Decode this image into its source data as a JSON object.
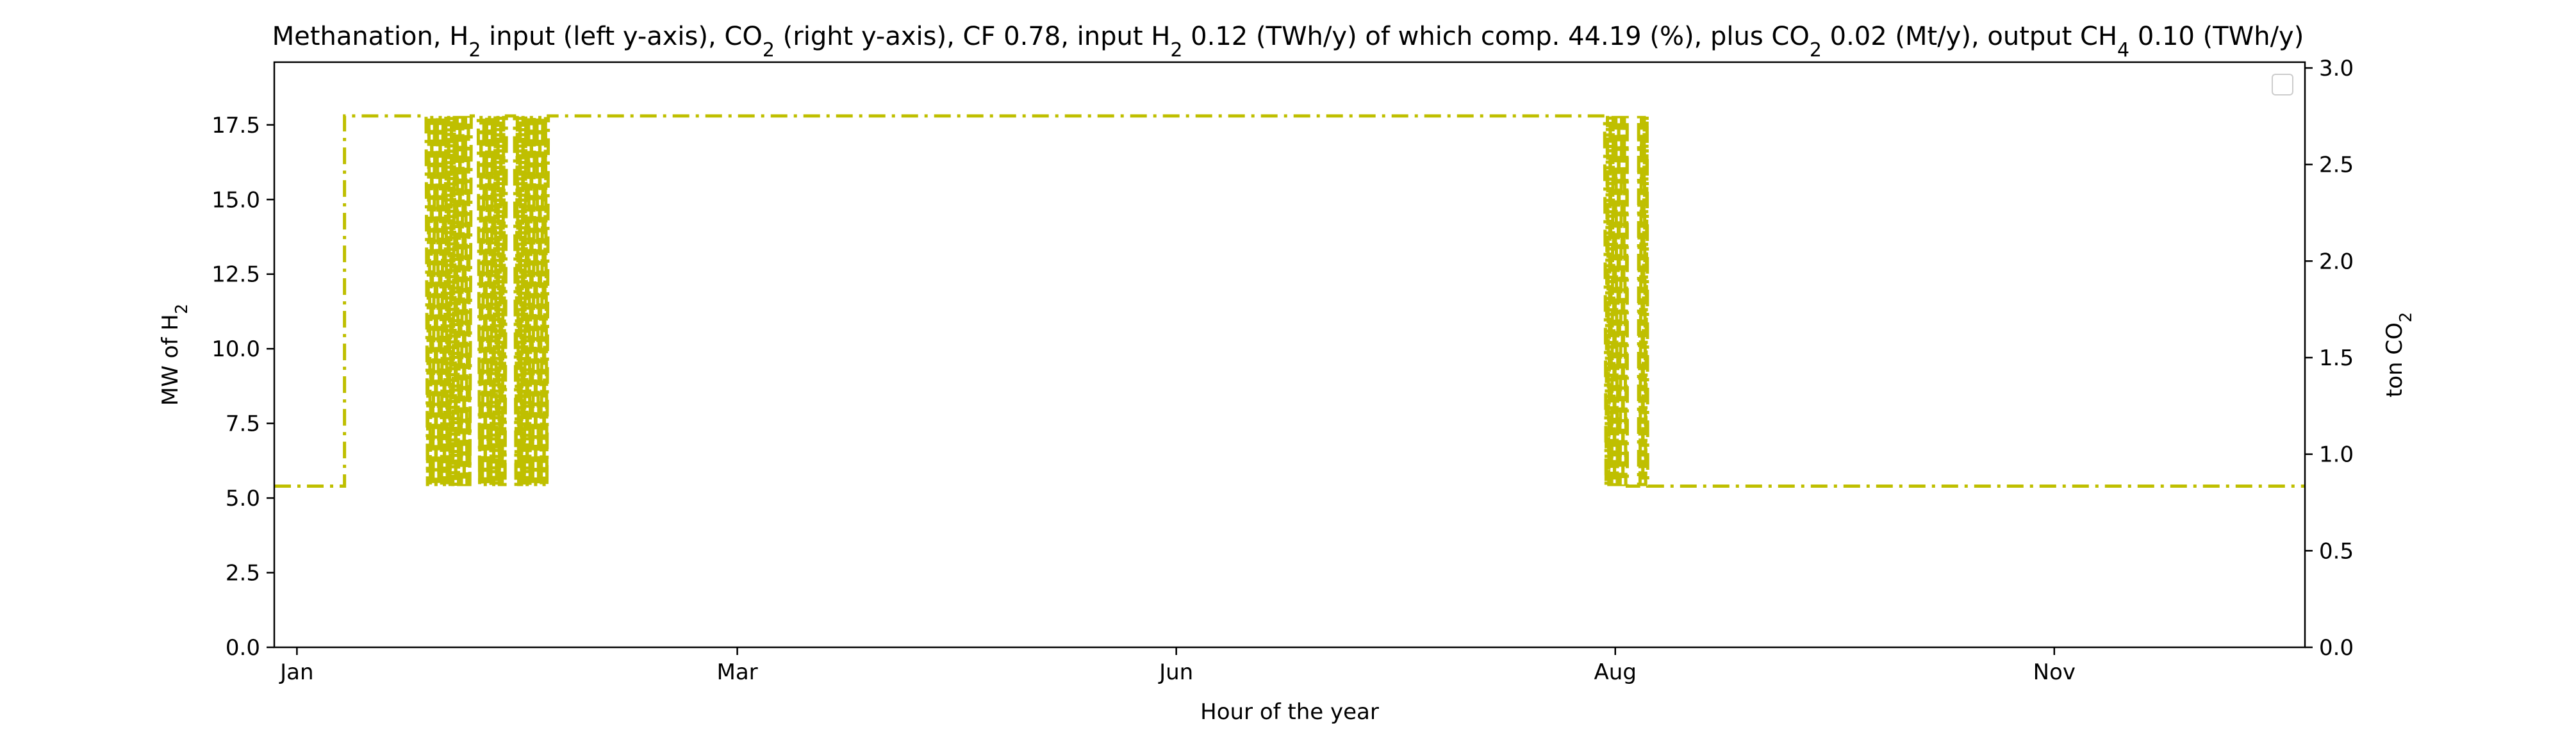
{
  "chart_data": {
    "type": "line",
    "title": {
      "text": "Methanation, H$_2$ input (left y-axis), CO$_2$ (right y-axis), CF 0.78, input H$_2$ 0.12 (TWh/y) of which comp. 44.19 (%), plus CO$_2$ 0.02 (Mt/y), output CH$_4$ 0.10 (TWh/y)",
      "parts": [
        {
          "t": "Methanation, H"
        },
        {
          "t": "2",
          "sub": true
        },
        {
          "t": " input (left y-axis), CO"
        },
        {
          "t": "2",
          "sub": true
        },
        {
          "t": " (right y-axis), CF 0.78, input H"
        },
        {
          "t": "2",
          "sub": true
        },
        {
          "t": " 0.12 (TWh/y) of which comp. 44.19 (%), plus CO"
        },
        {
          "t": "2",
          "sub": true
        },
        {
          "t": " 0.02 (Mt/y), output CH"
        },
        {
          "t": "4",
          "sub": true
        },
        {
          "t": " 0.10 (TWh/y)"
        }
      ]
    },
    "xlabel": "Hour of the year",
    "ylabel_left": {
      "text": "MW of H$_2$",
      "parts": [
        {
          "t": "MW of H"
        },
        {
          "t": "2",
          "sub": true
        }
      ]
    },
    "ylabel_right": {
      "text": "ton CO$_2$",
      "parts": [
        {
          "t": "ton CO"
        },
        {
          "t": "2",
          "sub": true
        }
      ]
    },
    "xlim": [
      -100,
      8860
    ],
    "ylim_left": [
      0,
      19.6
    ],
    "ylim_right": [
      0,
      3.03
    ],
    "x_ticks": [
      {
        "label": "Jan",
        "value": 0
      },
      {
        "label": "Mar",
        "value": 1943
      },
      {
        "label": "Jun",
        "value": 3880
      },
      {
        "label": "Aug",
        "value": 5817
      },
      {
        "label": "Nov",
        "value": 7754
      }
    ],
    "y_ticks_left": [
      0,
      2.5,
      5,
      7.5,
      10,
      12.5,
      15,
      17.5
    ],
    "y_ticks_left_labels": [
      "0.0",
      "2.5",
      "5.0",
      "7.5",
      "10.0",
      "12.5",
      "15.0",
      "17.5"
    ],
    "y_ticks_right": [
      0,
      0.5,
      1,
      1.5,
      2,
      2.5,
      3
    ],
    "y_ticks_right_labels": [
      "0.0",
      "0.5",
      "1.0",
      "1.5",
      "2.0",
      "2.5",
      "3.0"
    ],
    "grid": false,
    "legend": {
      "placement": "top-right",
      "entries": []
    },
    "series": [
      {
        "axis": "left",
        "color": "#bfbf00",
        "linestyle": "dashdot",
        "segments": [
          {
            "from": -100,
            "to": 210,
            "level": 5.4,
            "pattern": "constant"
          },
          {
            "from": 210,
            "to": 570,
            "level": 17.8,
            "pattern": "constant"
          },
          {
            "from": 570,
            "to": 770,
            "low": 5.4,
            "high": 17.8,
            "pattern": "oscillating"
          },
          {
            "from": 770,
            "to": 800,
            "level": 17.8,
            "pattern": "constant"
          },
          {
            "from": 800,
            "to": 930,
            "low": 5.4,
            "high": 17.8,
            "pattern": "oscillating"
          },
          {
            "from": 930,
            "to": 960,
            "level": 17.8,
            "pattern": "constant"
          },
          {
            "from": 960,
            "to": 1110,
            "low": 5.4,
            "high": 17.8,
            "pattern": "oscillating"
          },
          {
            "from": 1110,
            "to": 5770,
            "level": 17.8,
            "pattern": "constant"
          },
          {
            "from": 5770,
            "to": 5870,
            "low": 5.4,
            "high": 17.8,
            "pattern": "oscillating"
          },
          {
            "from": 5870,
            "to": 5920,
            "level": 5.4,
            "pattern": "constant"
          },
          {
            "from": 5920,
            "to": 5960,
            "low": 5.4,
            "high": 17.8,
            "pattern": "oscillating"
          },
          {
            "from": 5960,
            "to": 8860,
            "level": 5.4,
            "pattern": "constant"
          }
        ]
      }
    ]
  }
}
